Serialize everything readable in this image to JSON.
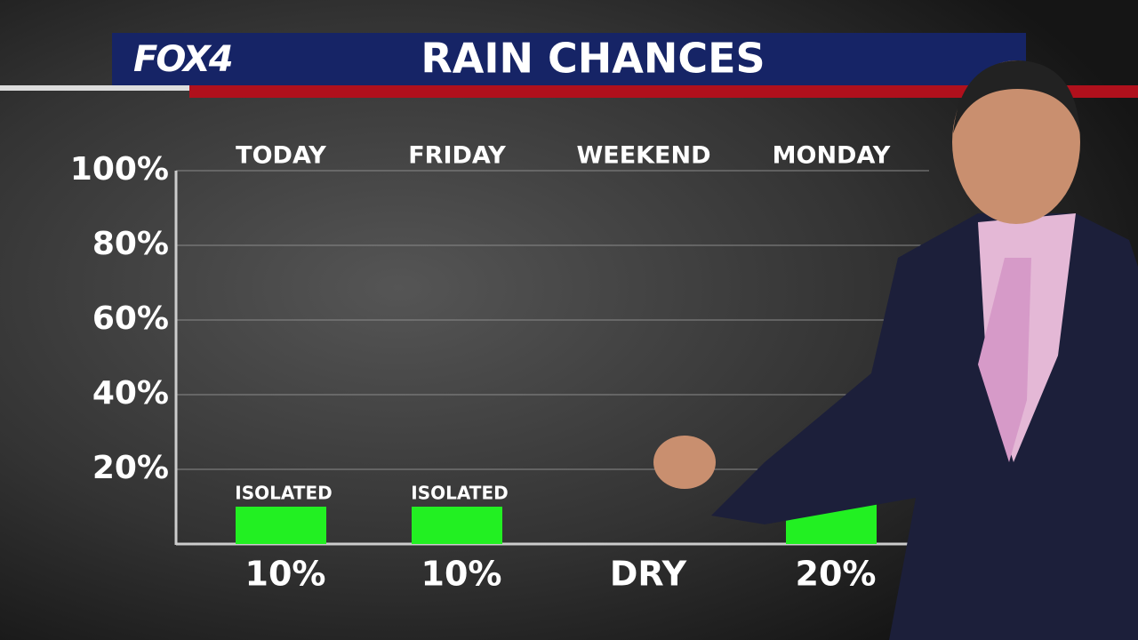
{
  "logo": "FOX4",
  "chart_data": {
    "type": "bar",
    "title": "RAIN CHANCES",
    "categories": [
      "TODAY",
      "FRIDAY",
      "WEEKEND",
      "MONDAY"
    ],
    "values": [
      10,
      10,
      0,
      20
    ],
    "value_labels": [
      "10%",
      "10%",
      "DRY",
      "20%"
    ],
    "annotations": [
      "ISOLATED",
      "ISOLATED",
      null,
      null
    ],
    "color": "#22f022",
    "ylim": [
      0,
      100
    ],
    "yticks": [
      {
        "value": 20,
        "label": "20%"
      },
      {
        "value": 40,
        "label": "40%"
      },
      {
        "value": 60,
        "label": "60%"
      },
      {
        "value": 80,
        "label": "80%"
      },
      {
        "value": 100,
        "label": "100%"
      }
    ],
    "grid": true
  }
}
